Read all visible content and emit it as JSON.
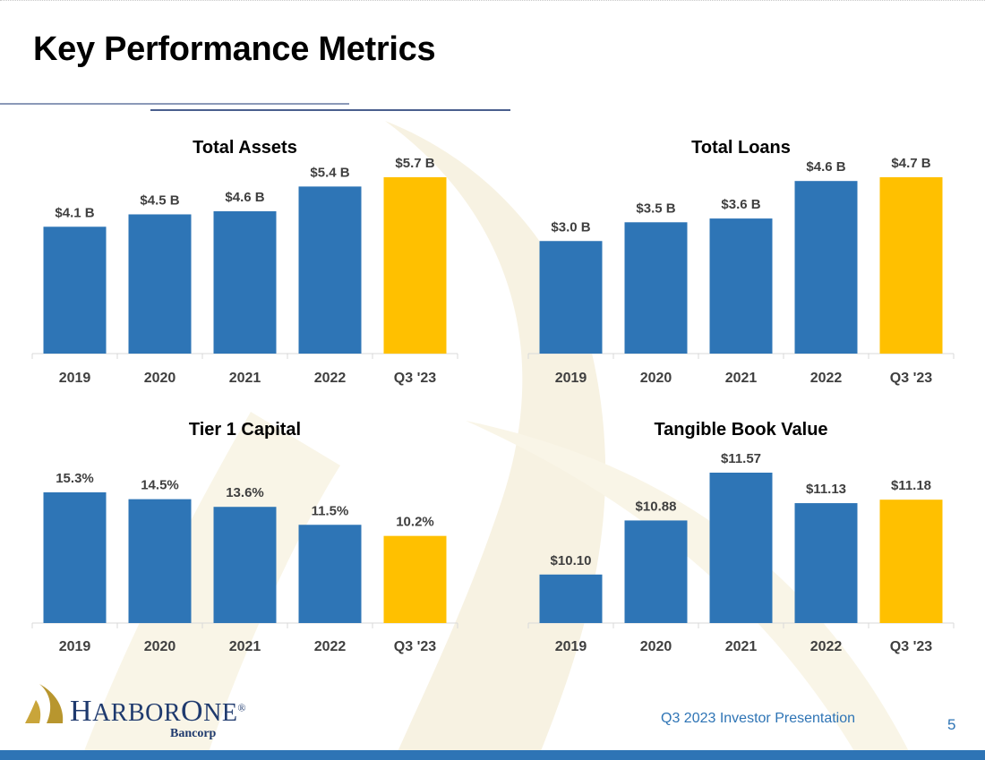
{
  "page": {
    "title": "Key Performance Metrics",
    "footer_text": "Q3 2023 Investor Presentation",
    "page_number": "5"
  },
  "logo": {
    "name_part1": "H",
    "name_part2": "ARBOR",
    "name_part3": "O",
    "name_part4": "NE",
    "registered": "®",
    "subtitle": "Bancorp"
  },
  "colors": {
    "bar": "#2e75b6",
    "highlight": "#ffc000",
    "axis": "#d9d9d9",
    "footer_bar": "#2e74b5",
    "watermark": "#f7f2e2"
  },
  "chart_data": [
    {
      "type": "bar",
      "title": "Total Assets",
      "categories": [
        "2019",
        "2020",
        "2021",
        "2022",
        "Q3 '23"
      ],
      "values": [
        4.1,
        4.5,
        4.6,
        5.4,
        5.7
      ],
      "labels": [
        "$4.1 B",
        "$4.5 B",
        "$4.6 B",
        "$5.4 B",
        "$5.7 B"
      ],
      "unit": "B",
      "highlight_index": 4,
      "ylim": [
        0,
        5.7
      ]
    },
    {
      "type": "bar",
      "title": "Total Loans",
      "categories": [
        "2019",
        "2020",
        "2021",
        "2022",
        "Q3 '23"
      ],
      "values": [
        3.0,
        3.5,
        3.6,
        4.6,
        4.7
      ],
      "labels": [
        "$3.0 B",
        "$3.5 B",
        "$3.6 B",
        "$4.6 B",
        "$4.7 B"
      ],
      "unit": "B",
      "highlight_index": 4,
      "ylim": [
        0,
        4.7
      ]
    },
    {
      "type": "bar",
      "title": "Tier 1 Capital",
      "categories": [
        "2019",
        "2020",
        "2021",
        "2022",
        "Q3 '23"
      ],
      "values": [
        15.3,
        14.5,
        13.6,
        11.5,
        10.2
      ],
      "labels": [
        "15.3%",
        "14.5%",
        "13.6%",
        "11.5%",
        "10.2%"
      ],
      "unit": "%",
      "highlight_index": 4,
      "ylim": [
        0,
        15.3
      ]
    },
    {
      "type": "bar",
      "title": "Tangible Book Value",
      "categories": [
        "2019",
        "2020",
        "2021",
        "2022",
        "Q3 '23"
      ],
      "values": [
        10.1,
        10.88,
        11.57,
        11.13,
        11.18
      ],
      "labels": [
        "$10.10",
        "$10.88",
        "$11.57",
        "$11.13",
        "$11.18"
      ],
      "unit": "$",
      "highlight_index": 4,
      "ylim": [
        9.4,
        11.57
      ]
    }
  ]
}
